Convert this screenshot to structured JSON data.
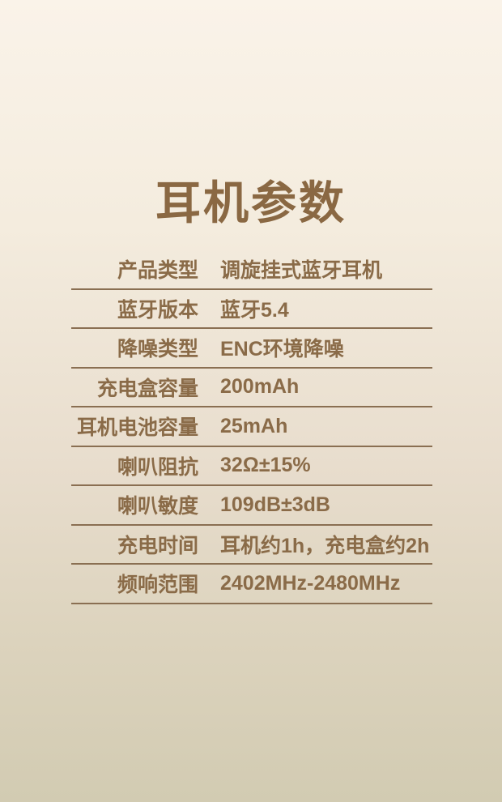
{
  "title": "耳机参数",
  "specs": {
    "rows": [
      {
        "label": "产品类型",
        "value": "调旋挂式蓝牙耳机"
      },
      {
        "label": "蓝牙版本",
        "value": "蓝牙5.4"
      },
      {
        "label": "降噪类型",
        "value": "ENC环境降噪"
      },
      {
        "label": "充电盒容量",
        "value": "200mAh"
      },
      {
        "label": "耳机电池容量",
        "value": "25mAh"
      },
      {
        "label": "喇叭阻抗",
        "value": "32Ω±15%"
      },
      {
        "label": "喇叭敏度",
        "value": "109dB±3dB"
      },
      {
        "label": "充电时间",
        "value": "耳机约1h，充电盒约2h"
      },
      {
        "label": "频响范围",
        "value": "2402MHz-2480MHz"
      }
    ]
  },
  "colors": {
    "text_brown": "#8a6b48",
    "title_brown": "#8a6843",
    "divider": "#8a6f52",
    "background_top": "#faf3e9",
    "background_bottom": "#d2cbb2"
  }
}
